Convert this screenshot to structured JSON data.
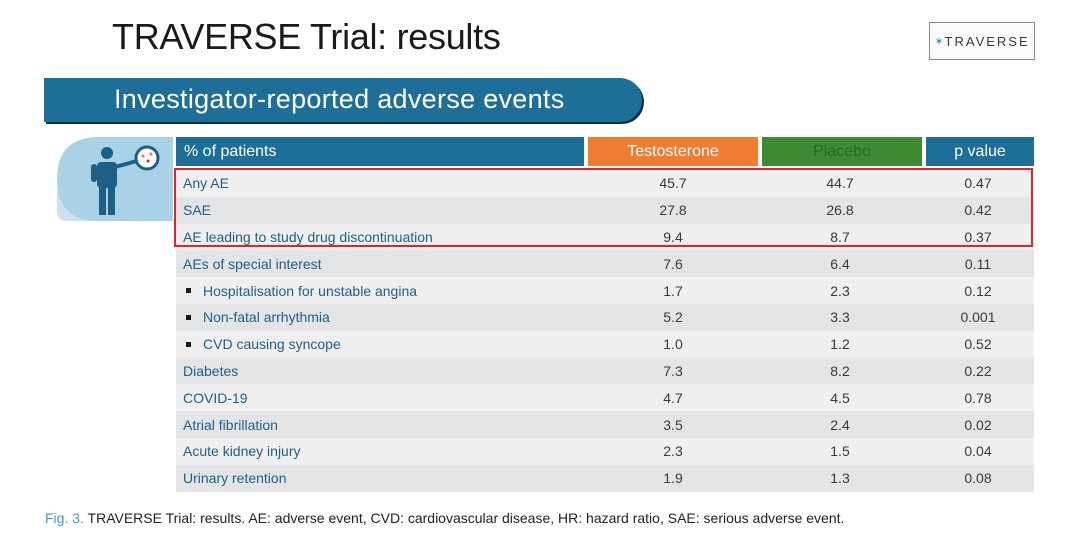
{
  "title": "TRAVERSE Trial: results",
  "logo": {
    "text": "TRAVERSE"
  },
  "banner": {
    "text": "Investigator-reported adverse events"
  },
  "table": {
    "headers": {
      "label": "% of patients",
      "testosterone": "Testosterone",
      "placebo": "Placebo",
      "pvalue": "p value"
    },
    "rows": [
      {
        "label": "Any AE",
        "t": "45.7",
        "p": "44.7",
        "v": "0.47",
        "bullet": false
      },
      {
        "label": "SAE",
        "t": "27.8",
        "p": "26.8",
        "v": "0.42",
        "bullet": false
      },
      {
        "label": "AE leading to study drug discontinuation",
        "t": "9.4",
        "p": "8.7",
        "v": "0.37",
        "bullet": false
      },
      {
        "label": "AEs of special interest",
        "t": "7.6",
        "p": "6.4",
        "v": "0.11",
        "bullet": false
      },
      {
        "label": "Hospitalisation for unstable angina",
        "t": "1.7",
        "p": "2.3",
        "v": "0.12",
        "bullet": true
      },
      {
        "label": "Non-fatal arrhythmia",
        "t": "5.2",
        "p": "3.3",
        "v": "0.001",
        "bullet": true
      },
      {
        "label": "CVD causing syncope",
        "t": "1.0",
        "p": "1.2",
        "v": "0.52",
        "bullet": true
      },
      {
        "label": "Diabetes",
        "t": "7.3",
        "p": "8.2",
        "v": "0.22",
        "bullet": false
      },
      {
        "label": "COVID-19",
        "t": "4.7",
        "p": "4.5",
        "v": "0.78",
        "bullet": false
      },
      {
        "label": "Atrial fibrillation",
        "t": "3.5",
        "p": "2.4",
        "v": "0.02",
        "bullet": false
      },
      {
        "label": "Acute kidney injury",
        "t": "2.3",
        "p": "1.5",
        "v": "0.04",
        "bullet": false
      },
      {
        "label": "Urinary retention",
        "t": "1.9",
        "p": "1.3",
        "v": "0.08",
        "bullet": false
      }
    ]
  },
  "caption": {
    "fig": "Fig. 3.",
    "text": " TRAVERSE Trial: results. AE: adverse event, CVD: cardiovascular disease, HR: hazard ratio, SAE: serious adverse event."
  },
  "colors": {
    "banner": "#1e6f98",
    "testosterone": "#ef7d31",
    "placebo": "#3f8b35",
    "highlight": "#e0242c",
    "fig_label": "#3aa0b8"
  },
  "icons": [
    "person-magnifier-icon",
    "traverse-logo-icon"
  ]
}
